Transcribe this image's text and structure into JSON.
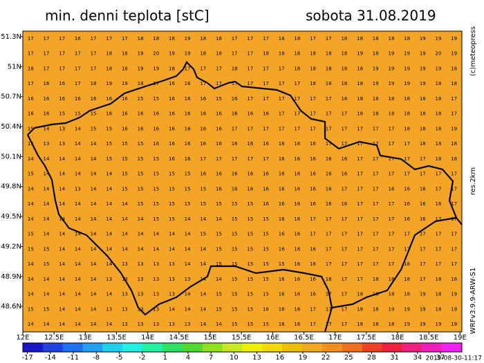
{
  "chart_data": {
    "type": "grid-map",
    "title": "min. denni teplota [stC]",
    "subtitle": "sobota 31.08.2019",
    "credit": "(c)meteopress",
    "resolution": "res.2km",
    "model": "WRFv3.9.9-ARW-S1",
    "run_time": "2019-08-30-11:17",
    "map_color": "#f5a525",
    "border_color": "#000000",
    "xlim": [
      12,
      19.03
    ],
    "ylim": [
      48.345,
      51.355
    ],
    "xticks": [
      {
        "value": 12,
        "label": "12E"
      },
      {
        "value": 12.5,
        "label": "12.5E"
      },
      {
        "value": 13,
        "label": "13E"
      },
      {
        "value": 13.5,
        "label": "13.5E"
      },
      {
        "value": 14,
        "label": "14E"
      },
      {
        "value": 14.5,
        "label": "14.5E"
      },
      {
        "value": 15,
        "label": "15E"
      },
      {
        "value": 15.5,
        "label": "15.5E"
      },
      {
        "value": 16,
        "label": "16E"
      },
      {
        "value": 16.5,
        "label": "16.5E"
      },
      {
        "value": 17,
        "label": "17E"
      },
      {
        "value": 17.5,
        "label": "17.5E"
      },
      {
        "value": 18,
        "label": "18E"
      },
      {
        "value": 18.5,
        "label": "18.5E"
      },
      {
        "value": 19,
        "label": "19E"
      }
    ],
    "yticks": [
      {
        "value": 51.3,
        "label": "51.3N"
      },
      {
        "value": 51,
        "label": "51N"
      },
      {
        "value": 50.7,
        "label": "50.7N"
      },
      {
        "value": 50.4,
        "label": "50.4N"
      },
      {
        "value": 50.1,
        "label": "50.1N"
      },
      {
        "value": 49.8,
        "label": "49.8N"
      },
      {
        "value": 49.5,
        "label": "49.5N"
      },
      {
        "value": 49.2,
        "label": "49.2N"
      },
      {
        "value": 48.9,
        "label": "48.9N"
      },
      {
        "value": 48.6,
        "label": "48.6N"
      }
    ],
    "colorbar": {
      "lim": [
        -17.6,
        39.8
      ],
      "ticks": [
        -17,
        -14,
        -11,
        -8,
        -5,
        -2,
        1,
        4,
        7,
        10,
        13,
        16,
        19,
        22,
        25,
        28,
        31,
        34,
        37
      ],
      "colors": [
        "#1818c8",
        "#2040e0",
        "#2070f0",
        "#20a0f0",
        "#20d0f0",
        "#20f0e0",
        "#20f0a0",
        "#30e060",
        "#50d830",
        "#90e020",
        "#c8e820",
        "#f0f000",
        "#f0d800",
        "#f0c000",
        "#f0a820",
        "#f09020",
        "#f07020",
        "#f04020",
        "#f02040",
        "#f02080",
        "#f020c0",
        "#f020f0"
      ]
    },
    "grid_values": [
      [
        17,
        17,
        17,
        16,
        17,
        17,
        17,
        18,
        18,
        18,
        19,
        18,
        18,
        17,
        17,
        17,
        18,
        18,
        17,
        17,
        18,
        18,
        18,
        18,
        18,
        19,
        19,
        19
      ],
      [
        17,
        17,
        17,
        17,
        17,
        18,
        18,
        19,
        20,
        19,
        19,
        18,
        18,
        17,
        17,
        18,
        18,
        18,
        18,
        18,
        18,
        19,
        18,
        19,
        19,
        19,
        20,
        19
      ],
      [
        18,
        17,
        17,
        17,
        17,
        18,
        18,
        19,
        19,
        18,
        17,
        17,
        17,
        18,
        17,
        17,
        17,
        18,
        18,
        18,
        18,
        18,
        19,
        19,
        19,
        19,
        19,
        18
      ],
      [
        17,
        16,
        16,
        17,
        18,
        19,
        19,
        18,
        17,
        16,
        16,
        17,
        17,
        17,
        17,
        17,
        17,
        17,
        18,
        18,
        18,
        18,
        19,
        19,
        19,
        19,
        18,
        18
      ],
      [
        16,
        16,
        16,
        16,
        16,
        16,
        16,
        15,
        15,
        16,
        16,
        16,
        15,
        16,
        17,
        17,
        17,
        17,
        17,
        17,
        18,
        18,
        18,
        18,
        18,
        18,
        18,
        17
      ],
      [
        16,
        16,
        15,
        15,
        15,
        16,
        16,
        16,
        16,
        16,
        16,
        16,
        16,
        16,
        16,
        16,
        17,
        17,
        17,
        17,
        17,
        18,
        18,
        18,
        18,
        18,
        18,
        17
      ],
      [
        15,
        14,
        13,
        14,
        15,
        15,
        16,
        16,
        16,
        16,
        16,
        16,
        16,
        17,
        17,
        17,
        17,
        17,
        17,
        17,
        17,
        17,
        17,
        17,
        18,
        18,
        18,
        19
      ],
      [
        15,
        13,
        13,
        14,
        14,
        15,
        15,
        15,
        16,
        16,
        16,
        16,
        16,
        16,
        16,
        16,
        16,
        16,
        16,
        17,
        17,
        17,
        17,
        17,
        17,
        18,
        18,
        18
      ],
      [
        14,
        14,
        14,
        14,
        14,
        15,
        15,
        15,
        15,
        16,
        16,
        17,
        17,
        17,
        17,
        17,
        16,
        16,
        16,
        16,
        16,
        17,
        17,
        17,
        17,
        17,
        18,
        18
      ],
      [
        15,
        14,
        14,
        14,
        14,
        14,
        15,
        15,
        15,
        15,
        15,
        16,
        16,
        16,
        16,
        16,
        16,
        16,
        16,
        16,
        16,
        17,
        17,
        17,
        17,
        17,
        17,
        17
      ],
      [
        14,
        14,
        14,
        13,
        14,
        14,
        15,
        15,
        15,
        15,
        15,
        15,
        16,
        16,
        16,
        16,
        16,
        16,
        16,
        16,
        17,
        17,
        17,
        16,
        16,
        16,
        17,
        17
      ],
      [
        14,
        14,
        14,
        14,
        14,
        14,
        14,
        15,
        15,
        15,
        15,
        15,
        15,
        15,
        15,
        16,
        16,
        16,
        16,
        16,
        16,
        17,
        17,
        17,
        16,
        16,
        16,
        17
      ],
      [
        14,
        14,
        14,
        14,
        14,
        14,
        14,
        14,
        15,
        15,
        14,
        14,
        14,
        15,
        15,
        15,
        16,
        16,
        17,
        17,
        17,
        17,
        17,
        17,
        16,
        16,
        17,
        17
      ],
      [
        15,
        14,
        14,
        14,
        14,
        14,
        14,
        14,
        14,
        14,
        14,
        15,
        15,
        15,
        15,
        15,
        16,
        16,
        17,
        17,
        17,
        17,
        17,
        17,
        17,
        17,
        17,
        17
      ],
      [
        15,
        15,
        14,
        14,
        14,
        14,
        14,
        14,
        14,
        14,
        14,
        14,
        15,
        15,
        15,
        15,
        16,
        16,
        16,
        17,
        17,
        17,
        17,
        17,
        17,
        17,
        17,
        17
      ],
      [
        14,
        15,
        14,
        14,
        14,
        14,
        13,
        13,
        13,
        13,
        14,
        14,
        15,
        15,
        15,
        15,
        15,
        16,
        16,
        17,
        17,
        17,
        17,
        17,
        18,
        17,
        17,
        17
      ],
      [
        14,
        14,
        14,
        14,
        14,
        13,
        13,
        13,
        13,
        13,
        13,
        14,
        14,
        15,
        15,
        15,
        16,
        16,
        16,
        16,
        17,
        17,
        18,
        18,
        18,
        17,
        18,
        18
      ],
      [
        14,
        14,
        14,
        14,
        14,
        14,
        13,
        13,
        13,
        13,
        14,
        14,
        15,
        15,
        15,
        15,
        16,
        16,
        16,
        17,
        17,
        18,
        18,
        18,
        18,
        19,
        18,
        19
      ],
      [
        15,
        15,
        14,
        14,
        14,
        13,
        13,
        13,
        13,
        14,
        14,
        14,
        15,
        15,
        15,
        16,
        16,
        16,
        17,
        17,
        17,
        18,
        18,
        19,
        19,
        19,
        18,
        19
      ],
      [
        14,
        14,
        14,
        14,
        14,
        14,
        13,
        13,
        13,
        13,
        13,
        14,
        14,
        15,
        15,
        15,
        16,
        16,
        17,
        17,
        17,
        18,
        18,
        18,
        19,
        19,
        19,
        19
      ]
    ]
  }
}
